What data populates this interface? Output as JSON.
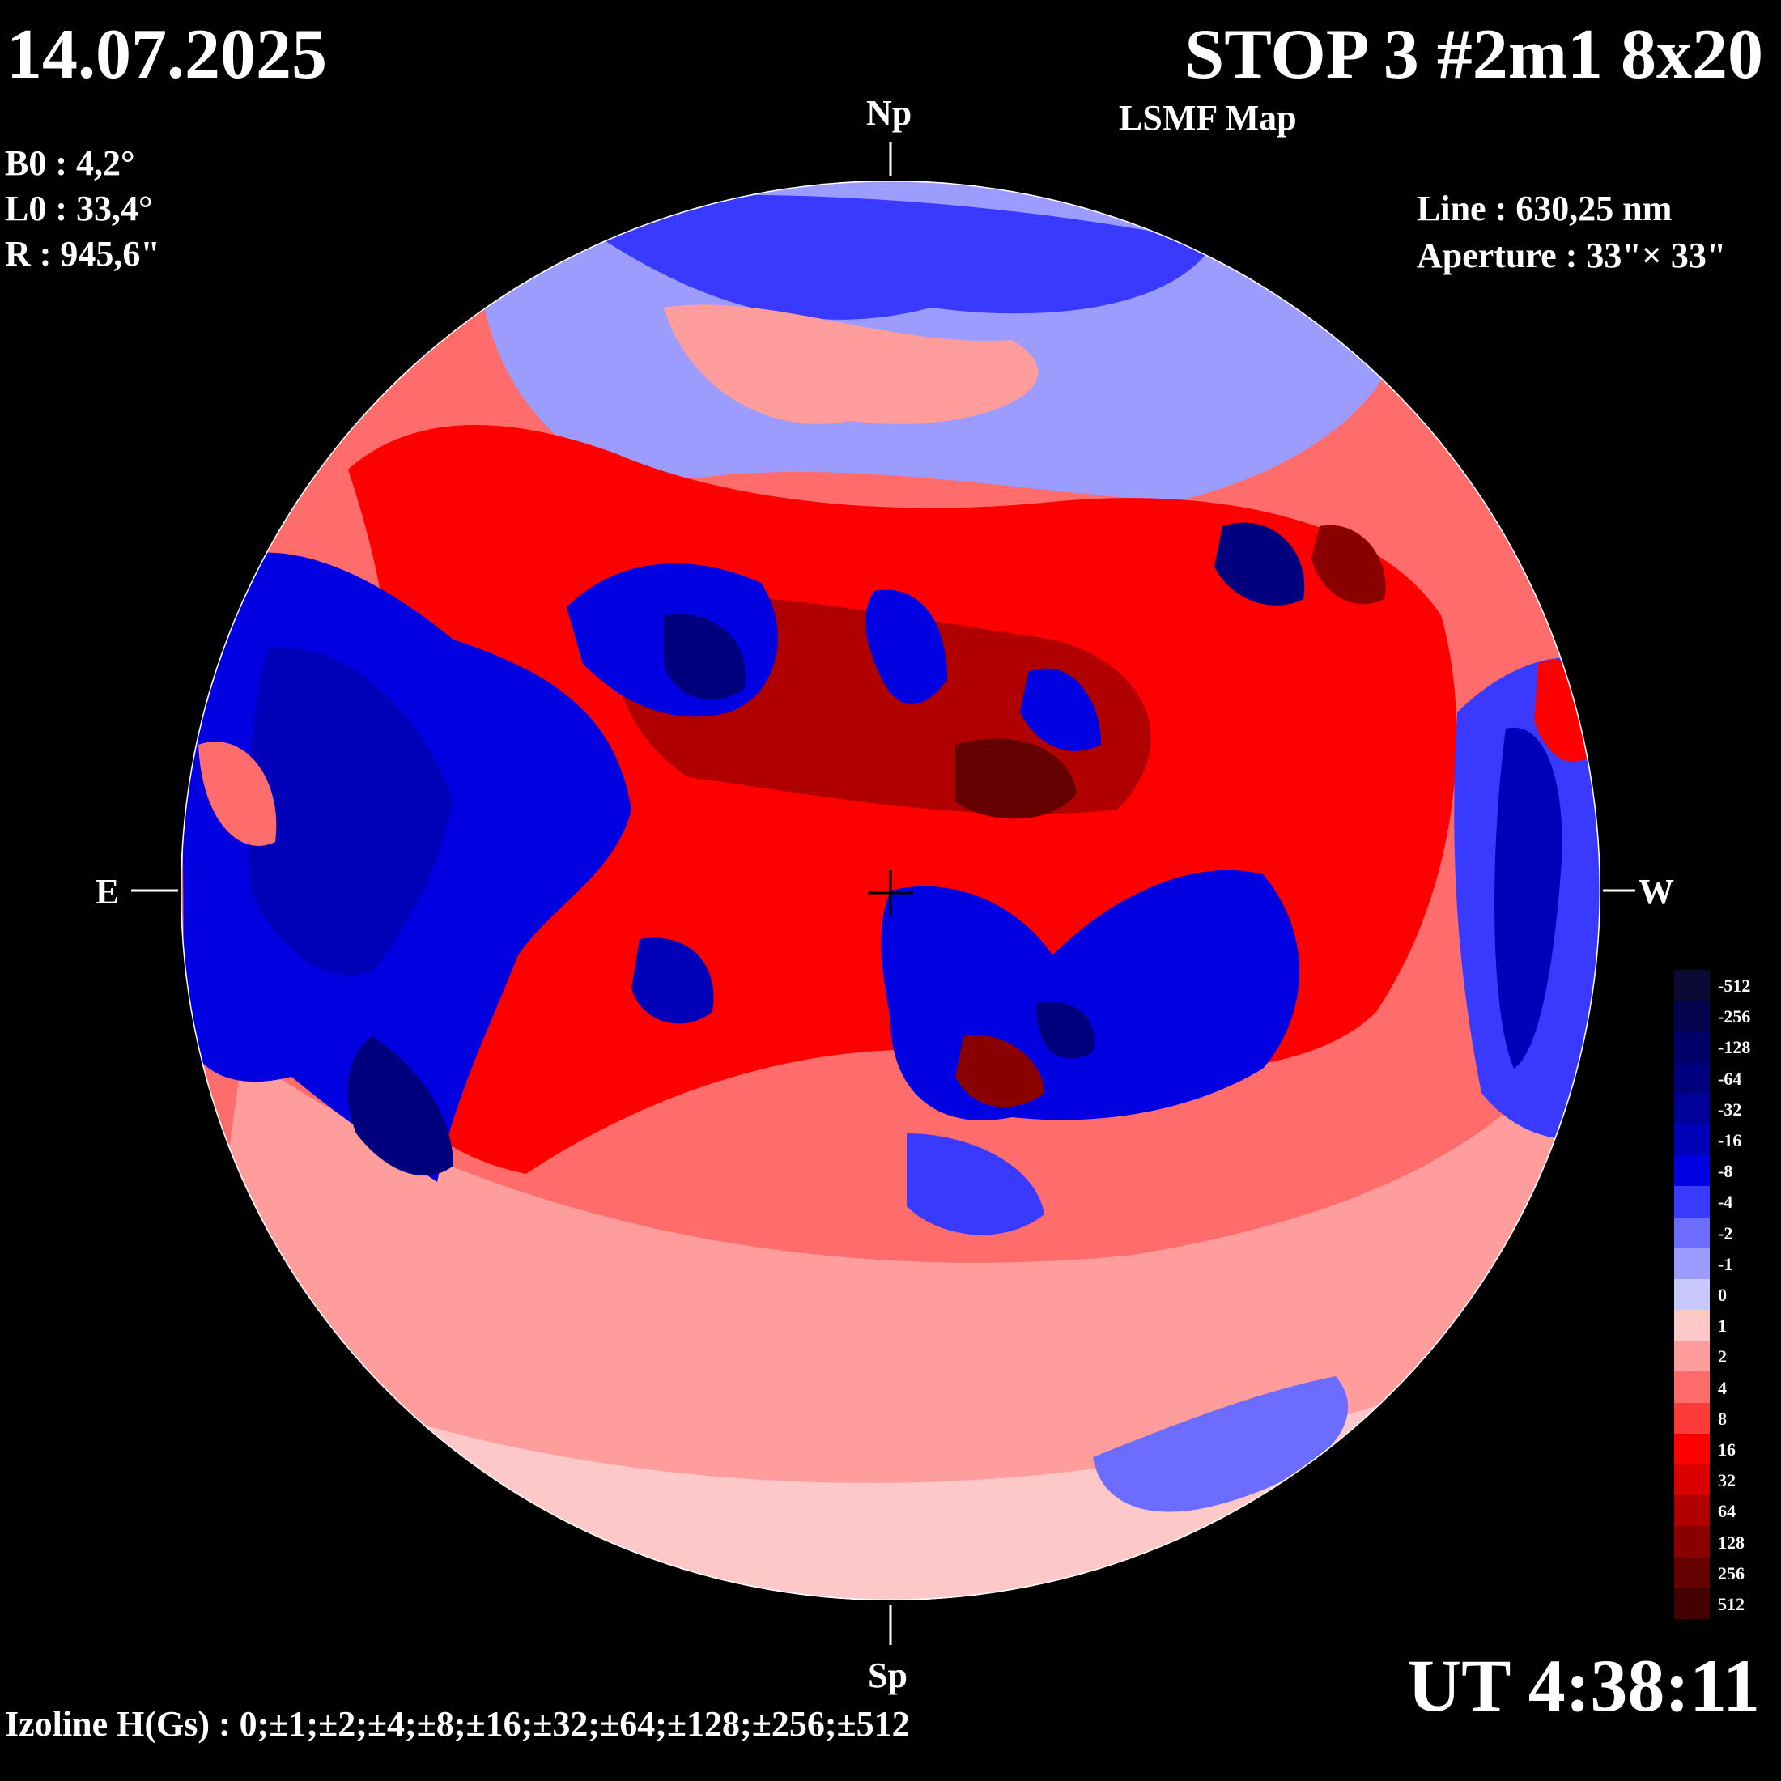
{
  "header": {
    "date": "14.07.2025",
    "title": "STOP 3 #2m1 8x20",
    "subtitle": "LSMF  Map"
  },
  "params": {
    "b0": "B0 : 4,2°",
    "l0": "L0 : 33,4°",
    "r": "R  : 945,6\""
  },
  "instrument": {
    "line": "Line :  630,25 nm",
    "aperture": "Aperture : 33\"× 33\""
  },
  "directions": {
    "north": "Np",
    "south": "Sp",
    "east": "E",
    "west": "W"
  },
  "time": "UT 4:38:11",
  "izoline": "Izoline H(Gs) : 0;±1;±2;±4;±8;±16;±32;±64;±128;±256;±512",
  "colorbar": {
    "labels": [
      "-512",
      "-256",
      "-128",
      "-64",
      "-32",
      "-16",
      "-8",
      "-4",
      "-2",
      "-1",
      "0",
      "1",
      "2",
      "4",
      "8",
      "16",
      "32",
      "64",
      "128",
      "256",
      "512"
    ],
    "colors": [
      "#0a0a35",
      "#05054f",
      "#000068",
      "#00007f",
      "#00009a",
      "#0000b8",
      "#0000e0",
      "#3a3aff",
      "#6c6cff",
      "#9c9cff",
      "#c8c8ff",
      "#ffc8c8",
      "#ff9c9c",
      "#ff6c6c",
      "#ff3a3a",
      "#ff0000",
      "#d80000",
      "#b00000",
      "#8a0000",
      "#640000",
      "#420000"
    ]
  },
  "map_colors": {
    "blue_strong": "#00009a",
    "blue_mid": "#3a3aff",
    "blue_light": "#9c9cff",
    "red_light": "#ff9c9c",
    "red_mid": "#ff3a3a",
    "red_strong": "#b00000",
    "limb": "#ffffff"
  }
}
